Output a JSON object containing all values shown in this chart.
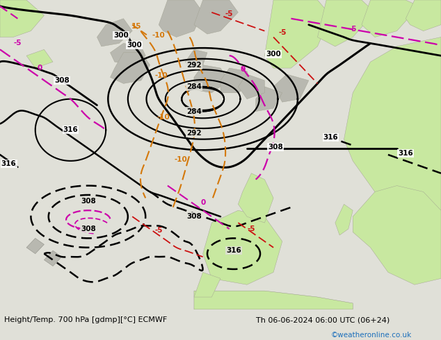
{
  "title_left": "Height/Temp. 700 hPa [gdmp][°C] ECMWF",
  "title_right": "Th 06-06-2024 06:00 UTC (06+24)",
  "credit": "©weatheronline.co.uk",
  "bg_color": "#e0e0d8",
  "land_green": "#c8e8a0",
  "land_grey": "#b8b8b0",
  "fig_width": 6.34,
  "fig_height": 4.9,
  "dpi": 100
}
